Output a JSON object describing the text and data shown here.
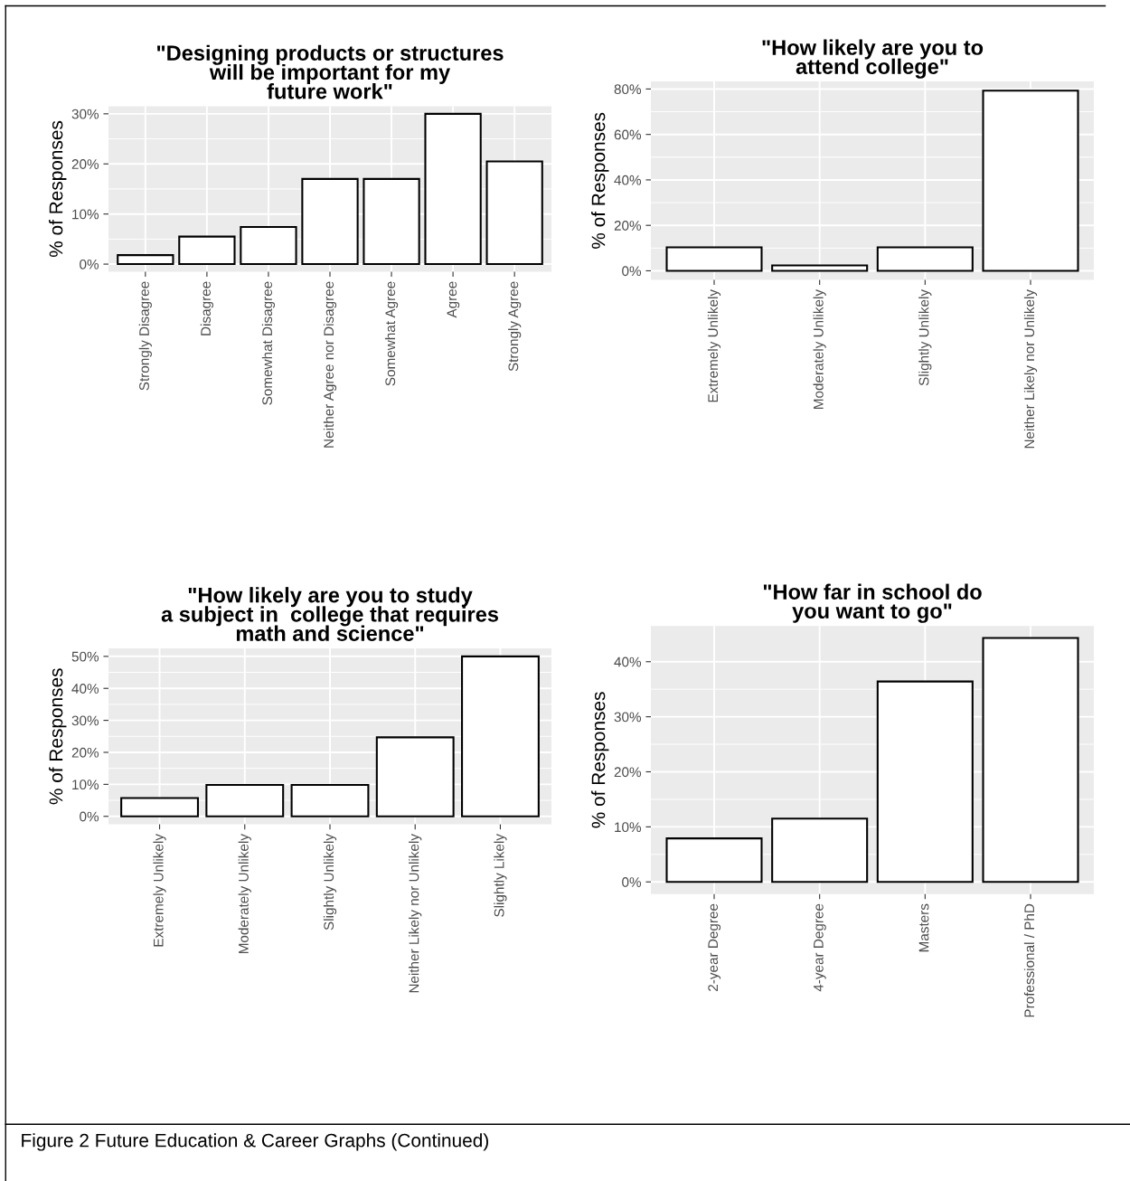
{
  "chart_data": [
    {
      "type": "bar",
      "title": "\"Designing products or structures\nwill be important for my\nfuture work\"",
      "ylabel": "% of Responses",
      "categories": [
        "Strongly Disagree",
        "Disagree",
        "Somewhat Disagree",
        "Neither Agree nor Disagree",
        "Somewhat Agree",
        "Agree",
        "Strongly Agree"
      ],
      "values": [
        1.8,
        5.5,
        7.4,
        17.0,
        17.0,
        30.0,
        20.5
      ],
      "color": "#ffffff",
      "ylim": [
        -1.5,
        31.5
      ],
      "yticks": [
        {
          "value": 0,
          "label": "0%"
        },
        {
          "value": 10,
          "label": "10%"
        },
        {
          "value": 20,
          "label": "20%"
        },
        {
          "value": 30,
          "label": "30%"
        }
      ],
      "grid": true,
      "annotations": [
        "Figure 2 Future Education & Career Graphs (Continued)"
      ]
    },
    {
      "type": "bar",
      "title": "\"How likely are you to\nattend college\"",
      "ylabel": "% of Responses",
      "categories": [
        "Extremely Unlikely",
        "Moderately Unlikely",
        "Slightly Unlikely",
        "Neither Likely nor Unlikely"
      ],
      "values": [
        10.3,
        2.4,
        10.3,
        79.3
      ],
      "color": "#ffffff",
      "ylim": [
        -4,
        83.3
      ],
      "yticks": [
        {
          "value": 0,
          "label": "0%"
        },
        {
          "value": 20,
          "label": "20%"
        },
        {
          "value": 40,
          "label": "40%"
        },
        {
          "value": 60,
          "label": "60%"
        },
        {
          "value": 80,
          "label": "80%"
        }
      ],
      "grid": true
    },
    {
      "type": "bar",
      "title": "\"How likely are you to study\na subject in  college that requires\nmath and science\"",
      "ylabel": "% of Responses",
      "categories": [
        "Extremely Unlikely",
        "Moderately Unlikely",
        "Slightly Unlikely",
        "Neither Likely nor Unlikely",
        "Slightly Likely"
      ],
      "values": [
        5.7,
        9.8,
        9.8,
        24.7,
        50.0
      ],
      "color": "#ffffff",
      "ylim": [
        -2.5,
        52.5
      ],
      "yticks": [
        {
          "value": 0,
          "label": "0%"
        },
        {
          "value": 10,
          "label": "10%"
        },
        {
          "value": 20,
          "label": "20%"
        },
        {
          "value": 30,
          "label": "30%"
        },
        {
          "value": 40,
          "label": "40%"
        },
        {
          "value": 50,
          "label": "50%"
        }
      ],
      "grid": true
    },
    {
      "type": "bar",
      "title": "\"How far in school do\nyou want to go\"",
      "ylabel": "% of Responses",
      "categories": [
        "2-year Degree",
        "4-year Degree",
        "Masters",
        "Professional / PhD"
      ],
      "values": [
        7.9,
        11.5,
        36.4,
        44.3
      ],
      "color": "#ffffff",
      "ylim": [
        -2.2,
        46.5
      ],
      "yticks": [
        {
          "value": 0,
          "label": "0%"
        },
        {
          "value": 10,
          "label": "10%"
        },
        {
          "value": 20,
          "label": "20%"
        },
        {
          "value": 30,
          "label": "30%"
        },
        {
          "value": 40,
          "label": "40%"
        }
      ],
      "grid": true
    }
  ]
}
